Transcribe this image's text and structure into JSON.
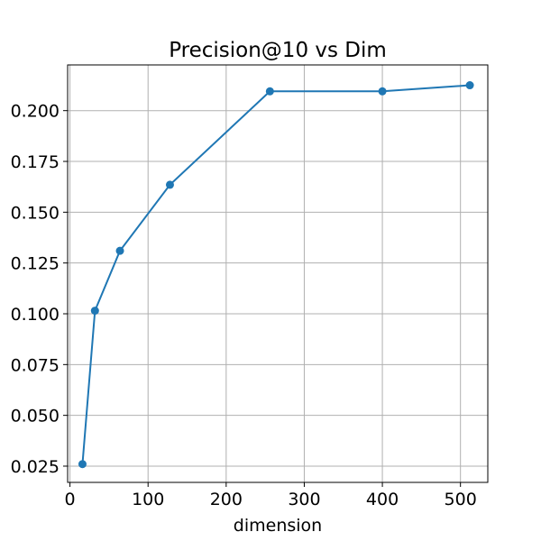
{
  "chart_data": {
    "type": "line",
    "title": "Precision@10 vs Dim",
    "xlabel": "dimension",
    "ylabel": "",
    "xlim": [
      -3,
      535
    ],
    "ylim": [
      0.017,
      0.2225
    ],
    "xticks": [
      0,
      100,
      200,
      300,
      400,
      500
    ],
    "xtick_labels": [
      "0",
      "100",
      "200",
      "300",
      "400",
      "500"
    ],
    "yticks": [
      0.025,
      0.05,
      0.075,
      0.1,
      0.125,
      0.15,
      0.175,
      0.2
    ],
    "ytick_labels": [
      "0.025",
      "0.050",
      "0.075",
      "0.100",
      "0.125",
      "0.150",
      "0.175",
      "0.200"
    ],
    "grid": true,
    "series": [
      {
        "color": "#1f77b4",
        "marker": "circle",
        "x": [
          16,
          32,
          64,
          128,
          256,
          400,
          512
        ],
        "y": [
          0.026,
          0.1015,
          0.131,
          0.1635,
          0.2095,
          0.2095,
          0.2125
        ]
      }
    ]
  }
}
